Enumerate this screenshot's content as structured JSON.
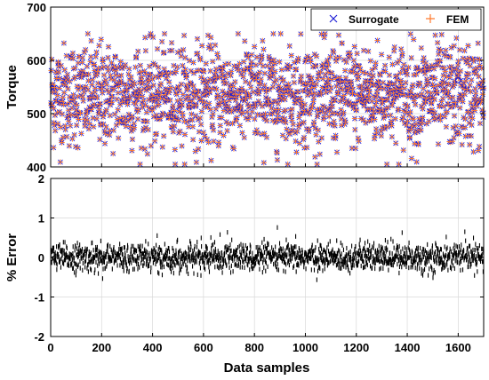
{
  "chart_data": [
    {
      "type": "scatter",
      "title": "",
      "xlabel": "",
      "ylabel": "Torque",
      "xlim": [
        0,
        1700
      ],
      "ylim": [
        400,
        700
      ],
      "yticks": [
        "400",
        "500",
        "600",
        "700"
      ],
      "grid": true,
      "legend_position": "top-right",
      "series": [
        {
          "name": "Surrogate",
          "marker": "x",
          "color": "#1f1fd6",
          "summary": {
            "n": 1700,
            "min": 405,
            "max": 650,
            "mean": 535
          }
        },
        {
          "name": "FEM",
          "marker": "+",
          "color": "#ff7a2e",
          "summary": {
            "n": 1700,
            "min": 405,
            "max": 650,
            "mean": 535
          }
        }
      ]
    },
    {
      "type": "scatter",
      "title": "",
      "xlabel": "Data samples",
      "ylabel": "% Error",
      "xlim": [
        0,
        1700
      ],
      "ylim": [
        -2,
        2
      ],
      "xticks": [
        "0",
        "200",
        "400",
        "600",
        "800",
        "1000",
        "1200",
        "1400",
        "1600"
      ],
      "yticks": [
        "-2",
        "-1",
        "0",
        "1",
        "2"
      ],
      "grid": true,
      "series": [
        {
          "marker": "line-segment",
          "color": "#000000",
          "summary": {
            "n": 1700,
            "min": -0.6,
            "max": 0.85,
            "mean": 0.0
          }
        }
      ]
    }
  ]
}
